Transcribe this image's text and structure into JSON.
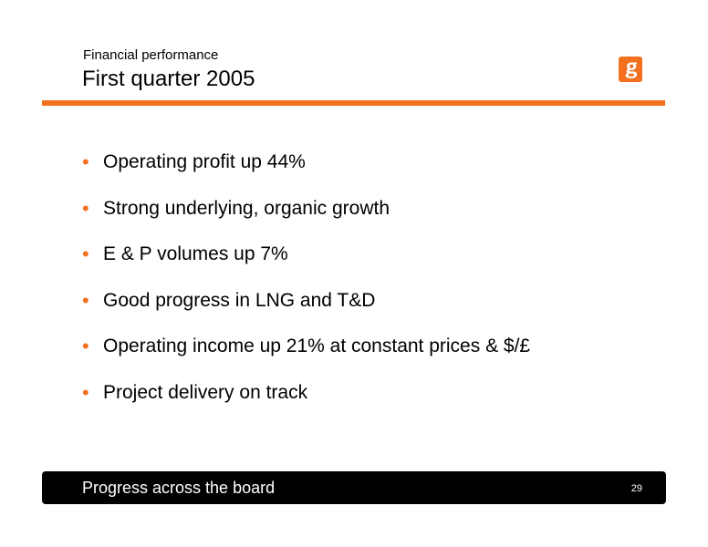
{
  "header": {
    "subtitle": "Financial performance",
    "title": "First quarter 2005",
    "logo_icon": "bg-group-logo-icon",
    "accent_color": "#f37021"
  },
  "bullets": [
    {
      "text": "Operating profit up 44%"
    },
    {
      "text": "Strong underlying, organic growth"
    },
    {
      "text": "E & P volumes up 7%"
    },
    {
      "text": "Good progress in LNG and T&D"
    },
    {
      "text": "Operating income up 21% at constant prices & $/£"
    },
    {
      "text": "Project delivery  on track"
    }
  ],
  "bullet_glyph": "•",
  "footer": {
    "text": "Progress across the board",
    "page_number": "29",
    "background_color": "#000000"
  }
}
